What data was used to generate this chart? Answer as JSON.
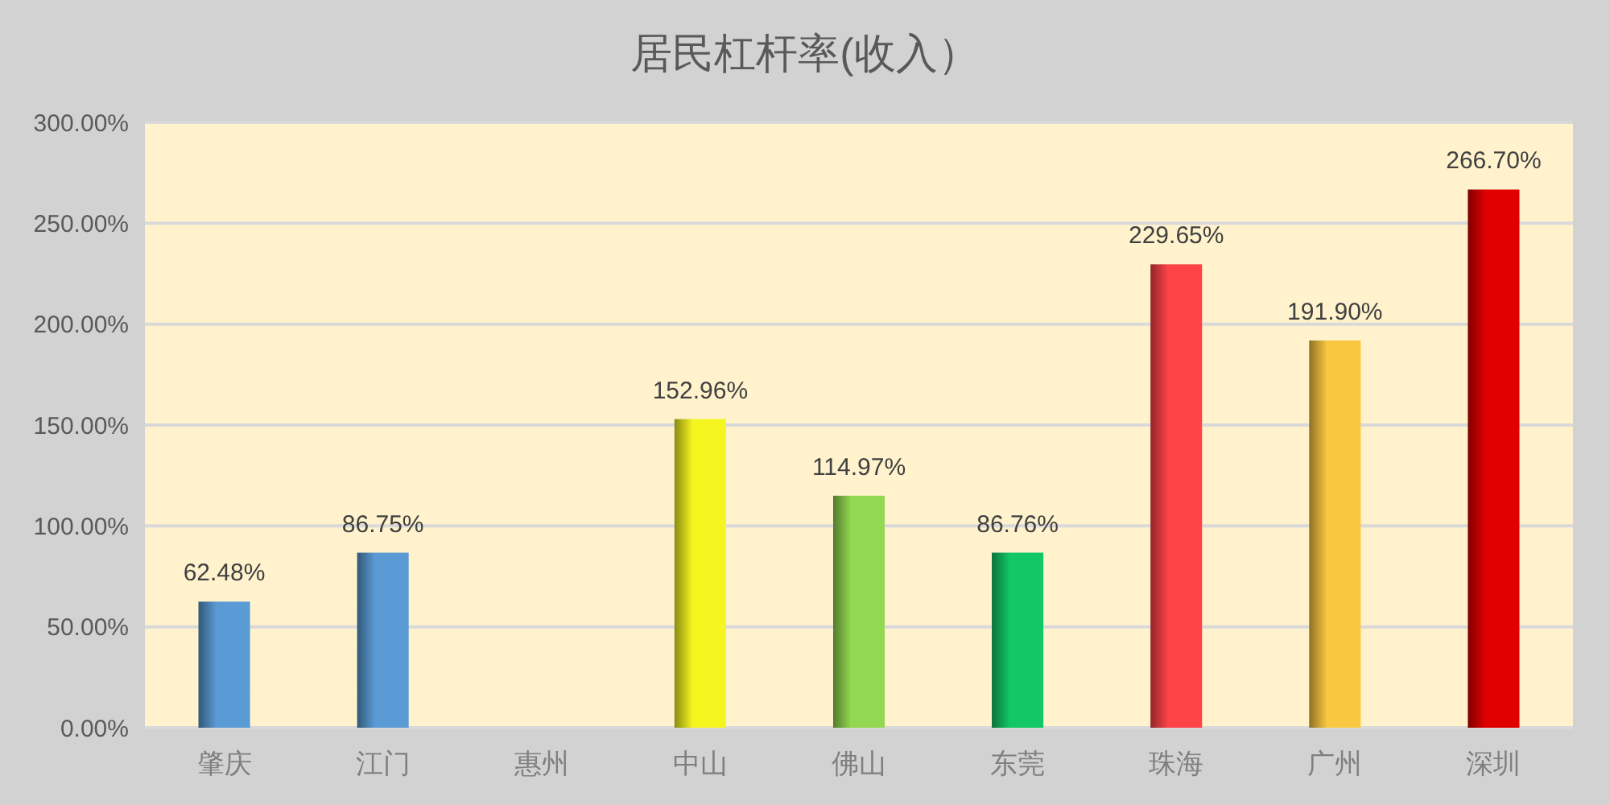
{
  "chart_data": {
    "type": "bar",
    "title": "居民杠杆率(收入）",
    "categories": [
      "肇庆",
      "江门",
      "惠州",
      "中山",
      "佛山",
      "东莞",
      "珠海",
      "广州",
      "深圳"
    ],
    "values": [
      62.48,
      86.75,
      null,
      152.96,
      114.97,
      86.76,
      229.65,
      191.9,
      266.7
    ],
    "value_labels": [
      "62.48%",
      "86.75%",
      null,
      "152.96%",
      "114.97%",
      "86.76%",
      "229.65%",
      "191.90%",
      "266.70%"
    ],
    "colors": [
      "#5b9bd5",
      "#5b9bd5",
      "#5b9bd5",
      "#f5f520",
      "#92d850",
      "#12c866",
      "#ff4448",
      "#fac840",
      "#e00000"
    ],
    "ylim": [
      0,
      300
    ],
    "yticks": [
      {
        "value": 0,
        "label": "0.00%"
      },
      {
        "value": 50,
        "label": "50.00%"
      },
      {
        "value": 100,
        "label": "100.00%"
      },
      {
        "value": 150,
        "label": "150.00%"
      },
      {
        "value": 200,
        "label": "200.00%"
      },
      {
        "value": 250,
        "label": "250.00%"
      },
      {
        "value": 300,
        "label": "300.00%"
      }
    ],
    "grid": "y"
  }
}
